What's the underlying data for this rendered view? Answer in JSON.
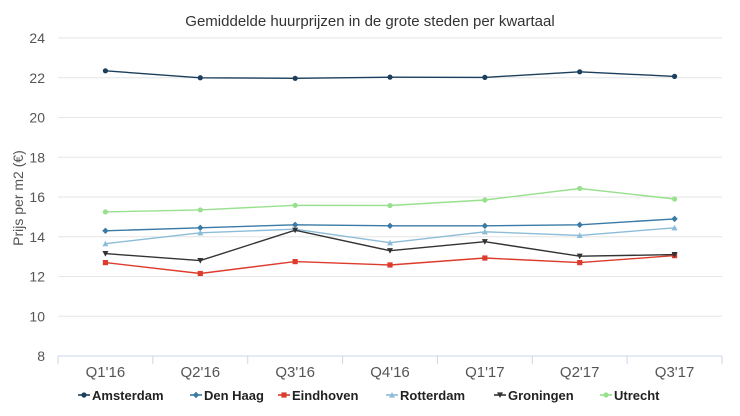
{
  "chart_data": {
    "type": "line",
    "title": "Gemiddelde huurprijzen in de grote steden per kwartaal",
    "xlabel": "",
    "ylabel": "Prijs per m2 (€)",
    "ylim": [
      8,
      24
    ],
    "yticks": [
      8,
      10,
      12,
      14,
      16,
      18,
      20,
      22,
      24
    ],
    "categories": [
      "Q1'16",
      "Q2'16",
      "Q3'16",
      "Q4'16",
      "Q1'17",
      "Q2'17",
      "Q3'17"
    ],
    "grid": true,
    "legend_position": "bottom",
    "series": [
      {
        "name": "Amsterdam",
        "color": "#1b3f5c",
        "marker": "circle",
        "values": [
          22.35,
          22.0,
          21.97,
          22.03,
          22.02,
          22.3,
          22.07
        ]
      },
      {
        "name": "Den Haag",
        "color": "#3a7aa6",
        "marker": "diamond",
        "values": [
          14.3,
          14.45,
          14.6,
          14.55,
          14.55,
          14.6,
          14.9
        ]
      },
      {
        "name": "Eindhoven",
        "color": "#dd3b2c",
        "marker": "square",
        "values": [
          12.7,
          12.15,
          12.75,
          12.58,
          12.93,
          12.7,
          13.05
        ]
      },
      {
        "name": "Rotterdam",
        "color": "#8bbcd8",
        "marker": "triangle",
        "values": [
          13.65,
          14.2,
          14.38,
          13.7,
          14.25,
          14.07,
          14.45
        ]
      },
      {
        "name": "Groningen",
        "color": "#333333",
        "marker": "triangle-down",
        "values": [
          13.15,
          12.8,
          14.33,
          13.3,
          13.75,
          13.02,
          13.1
        ]
      },
      {
        "name": "Utrecht",
        "color": "#98e08e",
        "marker": "circle",
        "values": [
          15.25,
          15.35,
          15.58,
          15.57,
          15.85,
          16.43,
          15.9
        ]
      }
    ]
  }
}
